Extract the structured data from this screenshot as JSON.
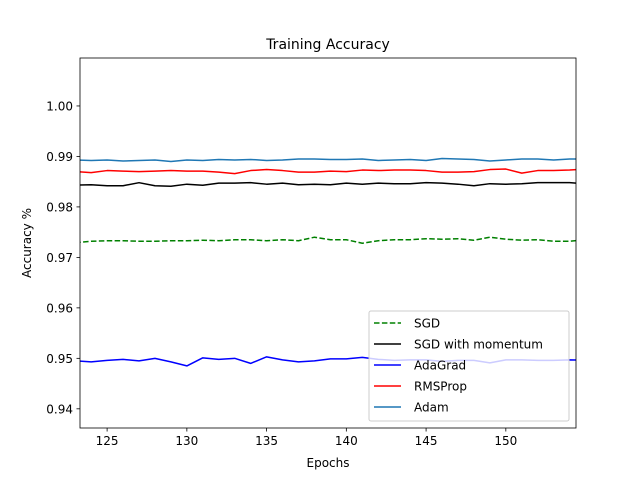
{
  "chart_data": {
    "type": "line",
    "title": "Training Accuracy",
    "xlabel": "Epochs",
    "ylabel": "Accuracy %",
    "xlim": [
      123.3,
      154.4
    ],
    "ylim": [
      0.9362,
      1.0095
    ],
    "xticks": [
      125,
      130,
      135,
      140,
      145,
      150
    ],
    "yticks": [
      0.94,
      0.95,
      0.96,
      0.97,
      0.98,
      0.99,
      1.0
    ],
    "ytick_labels": [
      "0.94",
      "0.95",
      "0.96",
      "0.97",
      "0.98",
      "0.99",
      "1.00"
    ],
    "grid": false,
    "legend_position": "lower-right",
    "x": [
      123,
      124,
      125,
      126,
      127,
      128,
      129,
      130,
      131,
      132,
      133,
      134,
      135,
      136,
      137,
      138,
      139,
      140,
      141,
      142,
      143,
      144,
      145,
      146,
      147,
      148,
      149,
      150,
      151,
      152,
      153,
      154,
      155
    ],
    "series": [
      {
        "name": "SGD",
        "color": "#008000",
        "dash": "dashed",
        "values": [
          0.9729,
          0.9732,
          0.9733,
          0.9733,
          0.9732,
          0.9732,
          0.9733,
          0.9733,
          0.9734,
          0.9733,
          0.9735,
          0.9735,
          0.9733,
          0.9735,
          0.9733,
          0.974,
          0.9735,
          0.9735,
          0.9728,
          0.9733,
          0.9735,
          0.9735,
          0.9737,
          0.9736,
          0.9737,
          0.9734,
          0.974,
          0.9736,
          0.9734,
          0.9735,
          0.9732,
          0.9732,
          0.9735
        ]
      },
      {
        "name": "SGD with momentum",
        "color": "#000000",
        "dash": "solid",
        "values": [
          0.9843,
          0.9844,
          0.9842,
          0.9842,
          0.9848,
          0.9842,
          0.9841,
          0.9845,
          0.9843,
          0.9847,
          0.9847,
          0.9848,
          0.9845,
          0.9847,
          0.9844,
          0.9845,
          0.9844,
          0.9847,
          0.9845,
          0.9847,
          0.9846,
          0.9846,
          0.9848,
          0.9847,
          0.9845,
          0.9842,
          0.9846,
          0.9845,
          0.9846,
          0.9848,
          0.9848,
          0.9848,
          0.9846
        ]
      },
      {
        "name": "AdaGrad",
        "color": "#0000ff",
        "dash": "solid",
        "values": [
          0.9495,
          0.9493,
          0.9496,
          0.9498,
          0.9495,
          0.95,
          0.9493,
          0.9485,
          0.9501,
          0.9498,
          0.95,
          0.949,
          0.9503,
          0.9497,
          0.9493,
          0.9495,
          0.9499,
          0.9499,
          0.9502,
          0.9498,
          0.9496,
          0.9497,
          0.9497,
          0.9494,
          0.9496,
          0.9496,
          0.9491,
          0.9497,
          0.9497,
          0.9496,
          0.9496,
          0.9497,
          0.9496
        ]
      },
      {
        "name": "RMSProp",
        "color": "#ff0000",
        "dash": "solid",
        "values": [
          0.987,
          0.9868,
          0.9872,
          0.9871,
          0.987,
          0.9871,
          0.9872,
          0.9871,
          0.9871,
          0.9869,
          0.9866,
          0.9872,
          0.9874,
          0.9872,
          0.9869,
          0.9869,
          0.9871,
          0.987,
          0.9873,
          0.9872,
          0.9873,
          0.9873,
          0.9872,
          0.9869,
          0.9869,
          0.987,
          0.9874,
          0.9875,
          0.9867,
          0.9872,
          0.9872,
          0.9873,
          0.9875
        ]
      },
      {
        "name": "Adam",
        "color": "#1f77b4",
        "dash": "solid",
        "values": [
          0.9893,
          0.9892,
          0.9893,
          0.9891,
          0.9892,
          0.9893,
          0.989,
          0.9893,
          0.9892,
          0.9894,
          0.9893,
          0.9894,
          0.9892,
          0.9893,
          0.9895,
          0.9895,
          0.9894,
          0.9894,
          0.9895,
          0.9892,
          0.9893,
          0.9894,
          0.9892,
          0.9896,
          0.9895,
          0.9894,
          0.9891,
          0.9893,
          0.9895,
          0.9895,
          0.9893,
          0.9895,
          0.9895
        ]
      }
    ]
  }
}
